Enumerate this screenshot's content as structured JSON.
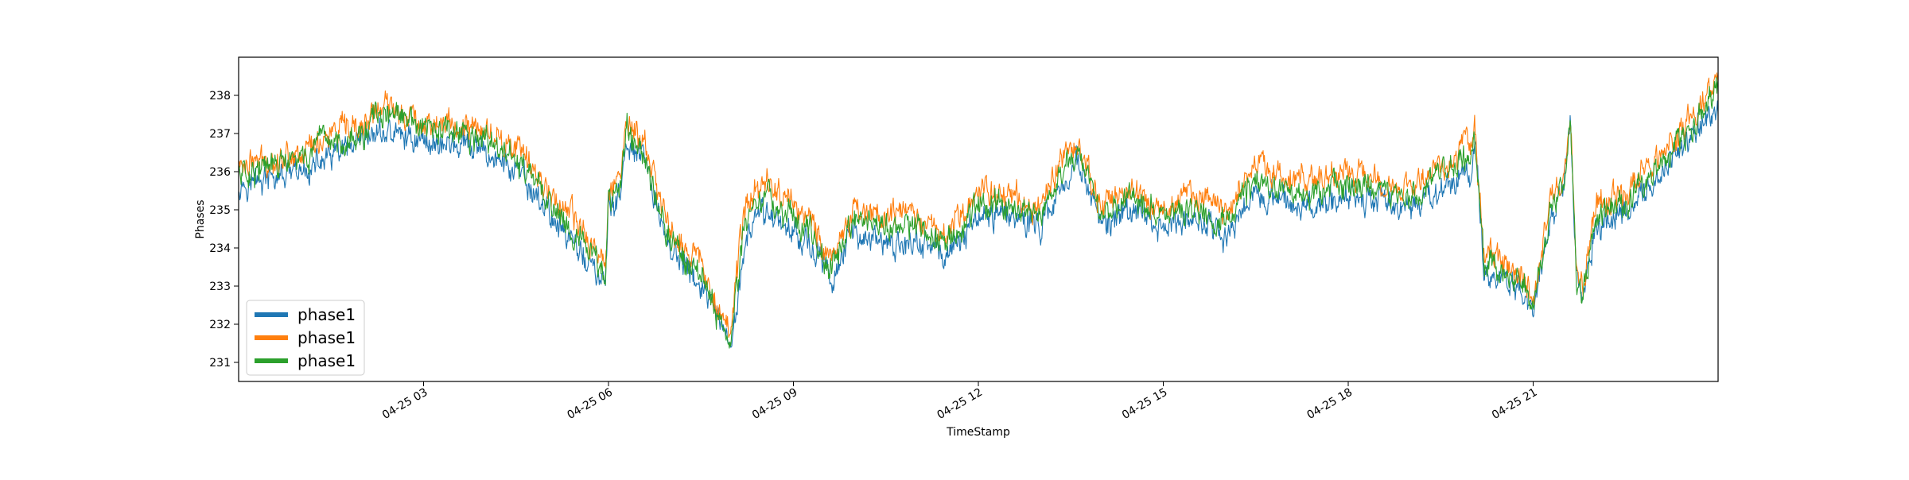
{
  "chart_data": {
    "type": "line",
    "title": "",
    "xlabel": "TimeStamp",
    "ylabel": "Phases",
    "x_unit": "hours",
    "xlim": [
      0.0,
      24.0
    ],
    "ylim": [
      230.5,
      239.0
    ],
    "grid": false,
    "legend_position": "lower-left",
    "x_ticks": [
      {
        "value": 3,
        "label": "04-25 03"
      },
      {
        "value": 6,
        "label": "04-25 06"
      },
      {
        "value": 9,
        "label": "04-25 09"
      },
      {
        "value": 12,
        "label": "04-25 12"
      },
      {
        "value": 15,
        "label": "04-25 15"
      },
      {
        "value": 18,
        "label": "04-25 18"
      },
      {
        "value": 21,
        "label": "04-25 21"
      }
    ],
    "y_ticks": [
      231,
      232,
      233,
      234,
      235,
      236,
      237,
      238
    ],
    "series": [
      {
        "name": "phase1",
        "color": "#1f77b4",
        "x": [
          0.0,
          0.5,
          1.0,
          1.5,
          2.0,
          2.2,
          2.5,
          3.0,
          3.5,
          4.0,
          4.5,
          5.0,
          5.5,
          5.8,
          5.95,
          6.0,
          6.2,
          6.3,
          6.5,
          6.6,
          6.8,
          7.0,
          7.5,
          7.8,
          7.95,
          8.0,
          8.2,
          8.5,
          9.0,
          9.3,
          9.6,
          10.0,
          10.5,
          11.0,
          11.5,
          12.0,
          12.5,
          13.0,
          13.3,
          13.6,
          14.0,
          14.5,
          15.0,
          15.5,
          16.0,
          16.5,
          17.0,
          17.5,
          18.0,
          18.5,
          19.0,
          19.5,
          20.0,
          20.05,
          20.2,
          20.5,
          20.8,
          20.9,
          21.0,
          21.3,
          21.5,
          21.6,
          21.7,
          21.8,
          22.0,
          22.5,
          23.0,
          23.5,
          24.0
        ],
        "values": [
          235.7,
          235.8,
          235.9,
          236.4,
          236.6,
          237.0,
          237.0,
          236.8,
          236.7,
          236.5,
          236.0,
          235.0,
          234.0,
          233.3,
          233.0,
          235.0,
          235.5,
          236.6,
          236.4,
          236.2,
          235.0,
          234.0,
          233.0,
          232.0,
          231.3,
          231.5,
          234.0,
          235.0,
          234.5,
          234.0,
          233.2,
          234.5,
          234.0,
          234.2,
          233.8,
          234.8,
          235.0,
          234.5,
          235.5,
          236.3,
          234.5,
          235.0,
          234.5,
          234.8,
          234.3,
          235.5,
          235.2,
          235.0,
          235.5,
          235.2,
          235.0,
          235.5,
          236.0,
          236.8,
          233.5,
          233.2,
          233.0,
          232.6,
          232.3,
          235.0,
          235.5,
          237.2,
          233.0,
          232.6,
          234.5,
          235.0,
          235.8,
          236.8,
          237.8
        ]
      },
      {
        "name": "phase1",
        "color": "#ff7f0e",
        "x": [
          0.0,
          0.5,
          1.0,
          1.5,
          2.0,
          2.2,
          2.5,
          3.0,
          3.5,
          4.0,
          4.5,
          5.0,
          5.5,
          5.8,
          5.95,
          6.0,
          6.2,
          6.3,
          6.5,
          6.6,
          6.8,
          7.0,
          7.5,
          7.8,
          7.95,
          8.0,
          8.2,
          8.5,
          9.0,
          9.3,
          9.6,
          10.0,
          10.5,
          11.0,
          11.5,
          12.0,
          12.5,
          13.0,
          13.3,
          13.6,
          14.0,
          14.5,
          15.0,
          15.5,
          16.0,
          16.5,
          17.0,
          17.5,
          18.0,
          18.5,
          19.0,
          19.5,
          20.0,
          20.05,
          20.2,
          20.5,
          20.8,
          20.9,
          21.0,
          21.3,
          21.5,
          21.6,
          21.7,
          21.8,
          22.0,
          22.5,
          23.0,
          23.5,
          24.0
        ],
        "values": [
          236.2,
          236.3,
          236.5,
          237.0,
          237.1,
          237.6,
          237.7,
          237.3,
          237.2,
          237.1,
          236.6,
          235.6,
          234.6,
          233.9,
          233.5,
          235.6,
          236.0,
          237.3,
          236.9,
          236.6,
          235.5,
          234.5,
          233.6,
          232.5,
          231.9,
          232.0,
          235.0,
          235.8,
          235.2,
          234.6,
          233.8,
          235.0,
          234.8,
          234.9,
          234.4,
          235.5,
          235.5,
          235.0,
          236.2,
          236.8,
          235.0,
          235.6,
          235.0,
          235.4,
          234.9,
          236.1,
          235.8,
          235.7,
          236.0,
          235.8,
          235.6,
          236.2,
          236.8,
          237.2,
          233.9,
          233.6,
          233.4,
          233.0,
          232.6,
          235.4,
          236.0,
          237.3,
          233.4,
          233.0,
          235.0,
          235.5,
          236.3,
          237.3,
          238.4
        ]
      },
      {
        "name": "phase1",
        "color": "#2ca02c",
        "x": [
          0.0,
          0.5,
          1.0,
          1.5,
          2.0,
          2.2,
          2.5,
          3.0,
          3.5,
          4.0,
          4.5,
          5.0,
          5.5,
          5.8,
          5.95,
          6.0,
          6.2,
          6.3,
          6.5,
          6.6,
          6.8,
          7.0,
          7.5,
          7.8,
          7.95,
          8.0,
          8.2,
          8.5,
          9.0,
          9.3,
          9.6,
          10.0,
          10.5,
          11.0,
          11.5,
          12.0,
          12.5,
          13.0,
          13.3,
          13.6,
          14.0,
          14.5,
          15.0,
          15.5,
          16.0,
          16.5,
          17.0,
          17.5,
          18.0,
          18.5,
          19.0,
          19.5,
          20.0,
          20.05,
          20.2,
          20.5,
          20.8,
          20.9,
          21.0,
          21.3,
          21.5,
          21.6,
          21.7,
          21.8,
          22.0,
          22.5,
          23.0,
          23.5,
          24.0
        ],
        "values": [
          236.0,
          236.1,
          236.3,
          236.8,
          236.9,
          237.4,
          237.5,
          237.1,
          237.0,
          236.8,
          236.3,
          235.3,
          234.3,
          233.6,
          233.2,
          235.3,
          235.8,
          237.0,
          236.7,
          236.4,
          235.2,
          234.2,
          233.3,
          232.2,
          231.6,
          231.8,
          234.6,
          235.4,
          234.8,
          234.3,
          233.5,
          234.8,
          234.5,
          234.6,
          234.1,
          235.2,
          235.2,
          234.8,
          235.9,
          236.6,
          234.8,
          235.3,
          234.8,
          235.1,
          234.6,
          235.8,
          235.5,
          235.4,
          235.7,
          235.5,
          235.3,
          235.9,
          236.5,
          237.0,
          233.7,
          233.4,
          233.2,
          232.8,
          232.4,
          235.2,
          235.8,
          237.5,
          233.2,
          232.8,
          234.8,
          235.2,
          236.0,
          237.0,
          238.1
        ]
      }
    ]
  }
}
